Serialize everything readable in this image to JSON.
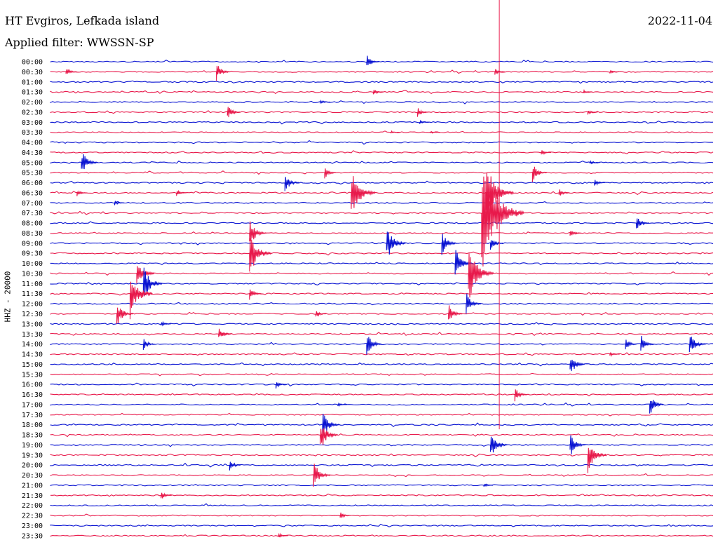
{
  "header": {
    "station": "HT Evgiros, Lefkada island",
    "date": "2022-11-04",
    "filter": "Applied filter: WWSSN-SP",
    "channel": "HHZ - 20000"
  },
  "chart_data": {
    "type": "line",
    "title": "HT Evgiros, Lefkada island",
    "subtitle": "Applied filter: WWSSN-SP",
    "ylabel": "HHZ - 20000",
    "xlabel": "",
    "y_tick_labels": [
      "00:00",
      "00:30",
      "01:00",
      "01:30",
      "02:00",
      "02:30",
      "03:00",
      "03:30",
      "04:00",
      "04:30",
      "05:00",
      "05:30",
      "06:00",
      "06:30",
      "07:00",
      "07:30",
      "08:00",
      "08:30",
      "09:00",
      "09:30",
      "10:00",
      "10:30",
      "11:00",
      "11:30",
      "12:00",
      "12:30",
      "13:00",
      "13:30",
      "14:00",
      "14:30",
      "15:00",
      "15:30",
      "16:00",
      "16:30",
      "17:00",
      "17:30",
      "18:00",
      "18:30",
      "19:00",
      "19:30",
      "20:00",
      "20:30",
      "21:00",
      "21:30",
      "22:00",
      "22:30",
      "23:00",
      "23:30"
    ],
    "minutes_per_line": 30,
    "series_colors": [
      "#0a14d2",
      "#e8194b"
    ],
    "events": [
      {
        "line": 0,
        "minute": 14.3,
        "amp": 11
      },
      {
        "line": 1,
        "minute": 0.7,
        "amp": 8
      },
      {
        "line": 1,
        "minute": 7.5,
        "amp": 14
      },
      {
        "line": 1,
        "minute": 20.1,
        "amp": 5
      },
      {
        "line": 1,
        "minute": 25.3,
        "amp": 3
      },
      {
        "line": 3,
        "minute": 14.6,
        "amp": 5
      },
      {
        "line": 3,
        "minute": 24.1,
        "amp": 3
      },
      {
        "line": 4,
        "minute": 12.2,
        "amp": 4
      },
      {
        "line": 5,
        "minute": 8.0,
        "amp": 12
      },
      {
        "line": 5,
        "minute": 16.6,
        "amp": 7
      },
      {
        "line": 5,
        "minute": 24.3,
        "amp": 4
      },
      {
        "line": 6,
        "minute": 16.7,
        "amp": 3
      },
      {
        "line": 7,
        "minute": 15.4,
        "amp": 2
      },
      {
        "line": 7,
        "minute": 17.2,
        "amp": 2
      },
      {
        "line": 9,
        "minute": 22.2,
        "amp": 5
      },
      {
        "line": 10,
        "minute": 1.4,
        "amp": 20
      },
      {
        "line": 10,
        "minute": 24.4,
        "amp": 4
      },
      {
        "line": 11,
        "minute": 12.4,
        "amp": 9
      },
      {
        "line": 11,
        "minute": 21.8,
        "amp": 16
      },
      {
        "line": 12,
        "minute": 10.6,
        "amp": 16
      },
      {
        "line": 12,
        "minute": 24.6,
        "amp": 6
      },
      {
        "line": 13,
        "minute": 13.6,
        "amp": 40
      },
      {
        "line": 13,
        "minute": 19.7,
        "amp": 50
      },
      {
        "line": 13,
        "minute": 23.0,
        "amp": 7
      },
      {
        "line": 13,
        "minute": 1.2,
        "amp": 5
      },
      {
        "line": 13,
        "minute": 5.7,
        "amp": 5
      },
      {
        "line": 14,
        "minute": 2.9,
        "amp": 4
      },
      {
        "line": 15,
        "minute": 19.5,
        "amp": 90
      },
      {
        "line": 16,
        "minute": 26.5,
        "amp": 12
      },
      {
        "line": 17,
        "minute": 9.0,
        "amp": 22
      },
      {
        "line": 17,
        "minute": 23.5,
        "amp": 8
      },
      {
        "line": 18,
        "minute": 15.2,
        "amp": 28
      },
      {
        "line": 18,
        "minute": 17.7,
        "amp": 18
      },
      {
        "line": 18,
        "minute": 19.9,
        "amp": 11
      },
      {
        "line": 19,
        "minute": 9.0,
        "amp": 35
      },
      {
        "line": 20,
        "minute": 18.3,
        "amp": 24
      },
      {
        "line": 21,
        "minute": 3.9,
        "amp": 25
      },
      {
        "line": 21,
        "minute": 18.9,
        "amp": 45
      },
      {
        "line": 22,
        "minute": 4.2,
        "amp": 28
      },
      {
        "line": 23,
        "minute": 3.6,
        "amp": 38
      },
      {
        "line": 23,
        "minute": 9.0,
        "amp": 10
      },
      {
        "line": 24,
        "minute": 18.8,
        "amp": 18
      },
      {
        "line": 25,
        "minute": 3.0,
        "amp": 20
      },
      {
        "line": 25,
        "minute": 12.0,
        "amp": 6
      },
      {
        "line": 25,
        "minute": 18.0,
        "amp": 15
      },
      {
        "line": 26,
        "minute": 5.0,
        "amp": 5
      },
      {
        "line": 27,
        "minute": 7.6,
        "amp": 12
      },
      {
        "line": 28,
        "minute": 4.2,
        "amp": 9
      },
      {
        "line": 28,
        "minute": 14.3,
        "amp": 18
      },
      {
        "line": 28,
        "minute": 26.0,
        "amp": 10
      },
      {
        "line": 28,
        "minute": 26.7,
        "amp": 14
      },
      {
        "line": 28,
        "minute": 28.9,
        "amp": 20
      },
      {
        "line": 29,
        "minute": 25.3,
        "amp": 4
      },
      {
        "line": 30,
        "minute": 23.5,
        "amp": 18
      },
      {
        "line": 32,
        "minute": 10.2,
        "amp": 6
      },
      {
        "line": 33,
        "minute": 21.0,
        "amp": 11
      },
      {
        "line": 34,
        "minute": 27.1,
        "amp": 16
      },
      {
        "line": 34,
        "minute": 13.0,
        "amp": 3
      },
      {
        "line": 36,
        "minute": 12.3,
        "amp": 22
      },
      {
        "line": 37,
        "minute": 12.2,
        "amp": 25
      },
      {
        "line": 38,
        "minute": 19.9,
        "amp": 22
      },
      {
        "line": 38,
        "minute": 23.5,
        "amp": 19
      },
      {
        "line": 39,
        "minute": 24.3,
        "amp": 28
      },
      {
        "line": 40,
        "minute": 8.1,
        "amp": 9
      },
      {
        "line": 41,
        "minute": 11.9,
        "amp": 22
      },
      {
        "line": 42,
        "minute": 19.6,
        "amp": 3
      },
      {
        "line": 43,
        "minute": 5.0,
        "amp": 7
      },
      {
        "line": 45,
        "minute": 13.1,
        "amp": 6
      },
      {
        "line": 47,
        "minute": 10.3,
        "amp": 5
      }
    ],
    "long_traces": [
      {
        "minute": 20.3,
        "from_line": 0,
        "to_line": 37
      }
    ]
  }
}
